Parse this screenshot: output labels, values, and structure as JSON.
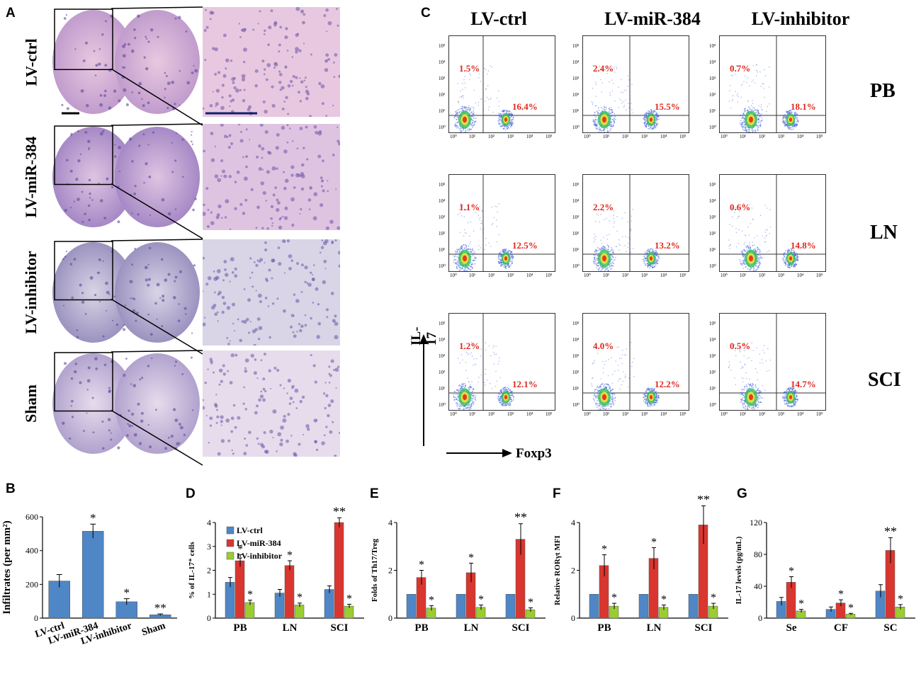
{
  "panel_labels": {
    "a": "A",
    "b": "B",
    "c": "C",
    "d": "D",
    "e": "E",
    "f": "F",
    "g": "G"
  },
  "panel_a": {
    "rows": [
      "LV-ctrl",
      "LV-miR-384",
      "LV-inhibitor",
      "Sham"
    ]
  },
  "panel_c": {
    "columns": [
      "LV-ctrl",
      "LV-miR-384",
      "LV-inhibitor"
    ],
    "tissues": [
      "PB",
      "LN",
      "SCI"
    ],
    "y_axis": "IL-17",
    "x_axis": "Foxp3",
    "axis_ticks": [
      "10⁰",
      "10¹",
      "10²",
      "10³",
      "10⁴",
      "10⁵"
    ],
    "percentages": [
      {
        "il17": "1.5%",
        "foxp3": "16.4%"
      },
      {
        "il17": "2.4%",
        "foxp3": "15.5%"
      },
      {
        "il17": "0.7%",
        "foxp3": "18.1%"
      },
      {
        "il17": "1.1%",
        "foxp3": "12.5%"
      },
      {
        "il17": "2.2%",
        "foxp3": "13.2%"
      },
      {
        "il17": "0.6%",
        "foxp3": "14.8%"
      },
      {
        "il17": "1.2%",
        "foxp3": "12.1%"
      },
      {
        "il17": "4.0%",
        "foxp3": "12.2%"
      },
      {
        "il17": "0.5%",
        "foxp3": "14.7%"
      }
    ]
  },
  "colors": {
    "blue": "#4f86c6",
    "red": "#d9362f",
    "green": "#9acd32",
    "pct": "#e0281e"
  },
  "chart_data": [
    {
      "id": "B",
      "type": "bar",
      "ylabel": "Infiltrates (per mm²)",
      "ylim": [
        0,
        600
      ],
      "yticks": [
        0,
        200,
        400,
        600
      ],
      "categories": [
        "LV-ctrl",
        "LV-miR-384",
        "LV-inhibitor",
        "Sham"
      ],
      "values": [
        220,
        515,
        97,
        20
      ],
      "errors": [
        38,
        42,
        18,
        5
      ],
      "sig": [
        "",
        "*",
        "*",
        "**"
      ]
    },
    {
      "id": "D",
      "type": "bar",
      "ylabel": "% of IL-17⁺ cells",
      "ylim": [
        0,
        4
      ],
      "yticks": [
        0,
        1,
        2,
        3,
        4
      ],
      "categories": [
        "PB",
        "LN",
        "SCI"
      ],
      "legend": [
        "LV-ctrl",
        "LV-miR-384",
        "LV-inhibitor"
      ],
      "series": [
        {
          "name": "LV-ctrl",
          "values": [
            1.5,
            1.05,
            1.2
          ],
          "errors": [
            0.2,
            0.15,
            0.15
          ]
        },
        {
          "name": "LV-miR-384",
          "values": [
            2.4,
            2.2,
            4.0
          ],
          "errors": [
            0.25,
            0.2,
            0.2
          ]
        },
        {
          "name": "LV-inhibitor",
          "values": [
            0.65,
            0.55,
            0.5
          ],
          "errors": [
            0.1,
            0.08,
            0.08
          ]
        }
      ],
      "sig": [
        [
          "",
          "*",
          "*"
        ],
        [
          "",
          "*",
          "*"
        ],
        [
          "",
          "**",
          "*"
        ]
      ]
    },
    {
      "id": "E",
      "type": "bar",
      "ylabel": "Folds of Th17/Treg",
      "ylim": [
        0,
        4
      ],
      "yticks": [
        0,
        2,
        4
      ],
      "categories": [
        "PB",
        "LN",
        "SCI"
      ],
      "series": [
        {
          "name": "LV-ctrl",
          "values": [
            1,
            1,
            1
          ],
          "errors": [
            0,
            0,
            0
          ]
        },
        {
          "name": "LV-miR-384",
          "values": [
            1.7,
            1.9,
            3.3
          ],
          "errors": [
            0.3,
            0.4,
            0.65
          ]
        },
        {
          "name": "LV-inhibitor",
          "values": [
            0.42,
            0.45,
            0.35
          ],
          "errors": [
            0.1,
            0.1,
            0.08
          ]
        }
      ],
      "sig": [
        [
          "",
          "*",
          "*"
        ],
        [
          "",
          "*",
          "*"
        ],
        [
          "",
          "**",
          "*"
        ]
      ]
    },
    {
      "id": "F",
      "type": "bar",
      "ylabel": "Relative RORγt MFI",
      "ylim": [
        0,
        4
      ],
      "yticks": [
        0,
        2,
        4
      ],
      "categories": [
        "PB",
        "LN",
        "SCI"
      ],
      "series": [
        {
          "name": "LV-ctrl",
          "values": [
            1,
            1,
            1
          ],
          "errors": [
            0,
            0,
            0
          ]
        },
        {
          "name": "LV-miR-384",
          "values": [
            2.2,
            2.5,
            3.9
          ],
          "errors": [
            0.45,
            0.45,
            0.8
          ]
        },
        {
          "name": "LV-inhibitor",
          "values": [
            0.5,
            0.45,
            0.5
          ],
          "errors": [
            0.12,
            0.1,
            0.12
          ]
        }
      ],
      "sig": [
        [
          "",
          "*",
          "*"
        ],
        [
          "",
          "*",
          "*"
        ],
        [
          "",
          "**",
          "*"
        ]
      ]
    },
    {
      "id": "G",
      "type": "bar",
      "ylabel": "IL-17 levels (pg/mL)",
      "ylim": [
        0,
        120
      ],
      "yticks": [
        0,
        40,
        80,
        120
      ],
      "categories": [
        "Se",
        "CF",
        "SC"
      ],
      "series": [
        {
          "name": "LV-ctrl",
          "values": [
            21,
            11,
            34
          ],
          "errors": [
            5,
            3,
            8
          ]
        },
        {
          "name": "LV-miR-384",
          "values": [
            45,
            19,
            85
          ],
          "errors": [
            7,
            4,
            16
          ]
        },
        {
          "name": "LV-inhibitor",
          "values": [
            9,
            5,
            14
          ],
          "errors": [
            2,
            1,
            3
          ]
        }
      ],
      "sig": [
        [
          "",
          "*",
          "*"
        ],
        [
          "",
          "*",
          "*"
        ],
        [
          "",
          "**",
          "*"
        ]
      ]
    }
  ]
}
